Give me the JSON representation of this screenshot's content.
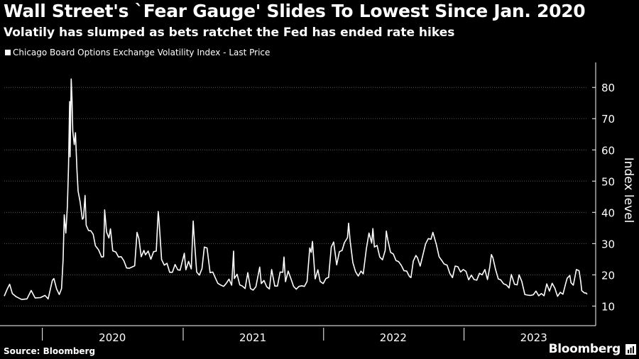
{
  "header": {
    "title": "Wall Street's `Fear Gauge' Slides To Lowest Since Jan. 2020",
    "subtitle": "Volatily has slumped as bets ratchet the Fed has ended rate hikes"
  },
  "footer": {
    "source": "Source: Bloomberg",
    "brand": "Bloomberg"
  },
  "colors": {
    "background": "#000000",
    "line": "#ffffff",
    "grid": "#555555"
  },
  "icons": {
    "brand_icon": "bar-chart-icon"
  },
  "chart_data": {
    "type": "line",
    "legend": "Chicago Board Options Exchange Volatility Index - Last Price",
    "ylabel": "Index level",
    "ylim": [
      6,
      88
    ],
    "yticks": [
      10,
      20,
      30,
      40,
      50,
      60,
      70,
      80
    ],
    "xlim": [
      "2019-09-24",
      "2023-11-17"
    ],
    "xticks": [
      {
        "label": "2020",
        "date": "2020-07-01"
      },
      {
        "label": "2021",
        "date": "2021-07-01"
      },
      {
        "label": "2022",
        "date": "2022-07-01"
      },
      {
        "label": "2023",
        "date": "2023-07-01"
      }
    ],
    "series": [
      {
        "name": "Chicago Board Options Exchange Volatility Index - Last Price",
        "points": [
          [
            "2019-09-24",
            13.2
          ],
          [
            "2019-10-02",
            15.5
          ],
          [
            "2019-10-08",
            17.0
          ],
          [
            "2019-10-15",
            14.0
          ],
          [
            "2019-10-25",
            13.0
          ],
          [
            "2019-11-08",
            12.1
          ],
          [
            "2019-11-22",
            12.3
          ],
          [
            "2019-12-03",
            15.0
          ],
          [
            "2019-12-13",
            12.6
          ],
          [
            "2019-12-27",
            12.7
          ],
          [
            "2020-01-08",
            13.4
          ],
          [
            "2020-01-16",
            12.3
          ],
          [
            "2020-01-27",
            18.2
          ],
          [
            "2020-01-31",
            18.8
          ],
          [
            "2020-02-07",
            15.5
          ],
          [
            "2020-02-14",
            13.7
          ],
          [
            "2020-02-20",
            15.6
          ],
          [
            "2020-02-24",
            25.0
          ],
          [
            "2020-02-27",
            39.2
          ],
          [
            "2020-03-02",
            33.4
          ],
          [
            "2020-03-06",
            41.9
          ],
          [
            "2020-03-09",
            54.5
          ],
          [
            "2020-03-12",
            75.5
          ],
          [
            "2020-03-13",
            57.8
          ],
          [
            "2020-03-16",
            82.7
          ],
          [
            "2020-03-18",
            76.5
          ],
          [
            "2020-03-20",
            66.0
          ],
          [
            "2020-03-24",
            61.7
          ],
          [
            "2020-03-27",
            65.5
          ],
          [
            "2020-03-31",
            53.5
          ],
          [
            "2020-04-03",
            46.8
          ],
          [
            "2020-04-08",
            43.4
          ],
          [
            "2020-04-14",
            37.8
          ],
          [
            "2020-04-17",
            38.2
          ],
          [
            "2020-04-21",
            45.4
          ],
          [
            "2020-04-24",
            35.9
          ],
          [
            "2020-04-30",
            34.2
          ],
          [
            "2020-05-06",
            34.1
          ],
          [
            "2020-05-12",
            33.0
          ],
          [
            "2020-05-18",
            29.3
          ],
          [
            "2020-05-26",
            28.0
          ],
          [
            "2020-06-03",
            25.7
          ],
          [
            "2020-06-08",
            25.8
          ],
          [
            "2020-06-11",
            40.8
          ],
          [
            "2020-06-16",
            33.7
          ],
          [
            "2020-06-22",
            31.8
          ],
          [
            "2020-06-26",
            34.7
          ],
          [
            "2020-07-02",
            27.7
          ],
          [
            "2020-07-10",
            27.3
          ],
          [
            "2020-07-17",
            25.7
          ],
          [
            "2020-07-24",
            25.8
          ],
          [
            "2020-07-31",
            24.5
          ],
          [
            "2020-08-07",
            22.2
          ],
          [
            "2020-08-14",
            22.1
          ],
          [
            "2020-08-21",
            22.5
          ],
          [
            "2020-08-28",
            22.9
          ],
          [
            "2020-09-03",
            33.6
          ],
          [
            "2020-09-08",
            31.5
          ],
          [
            "2020-09-14",
            25.8
          ],
          [
            "2020-09-21",
            27.8
          ],
          [
            "2020-09-25",
            26.4
          ],
          [
            "2020-10-02",
            27.6
          ],
          [
            "2020-10-09",
            25.0
          ],
          [
            "2020-10-16",
            27.4
          ],
          [
            "2020-10-23",
            27.6
          ],
          [
            "2020-10-28",
            40.3
          ],
          [
            "2020-10-30",
            38.0
          ],
          [
            "2020-11-06",
            24.9
          ],
          [
            "2020-11-13",
            23.1
          ],
          [
            "2020-11-20",
            23.7
          ],
          [
            "2020-11-27",
            20.8
          ],
          [
            "2020-12-04",
            20.8
          ],
          [
            "2020-12-11",
            23.3
          ],
          [
            "2020-12-18",
            21.6
          ],
          [
            "2020-12-24",
            21.5
          ],
          [
            "2021-01-04",
            26.9
          ],
          [
            "2021-01-08",
            21.6
          ],
          [
            "2021-01-15",
            24.3
          ],
          [
            "2021-01-22",
            21.9
          ],
          [
            "2021-01-27",
            37.2
          ],
          [
            "2021-01-29",
            33.1
          ],
          [
            "2021-02-05",
            20.9
          ],
          [
            "2021-02-12",
            19.9
          ],
          [
            "2021-02-19",
            22.0
          ],
          [
            "2021-02-25",
            28.9
          ],
          [
            "2021-03-04",
            28.6
          ],
          [
            "2021-03-12",
            20.7
          ],
          [
            "2021-03-19",
            20.9
          ],
          [
            "2021-03-26",
            18.9
          ],
          [
            "2021-04-01",
            17.3
          ],
          [
            "2021-04-09",
            16.7
          ],
          [
            "2021-04-16",
            16.3
          ],
          [
            "2021-04-23",
            17.3
          ],
          [
            "2021-04-30",
            18.6
          ],
          [
            "2021-05-07",
            16.7
          ],
          [
            "2021-05-12",
            27.6
          ],
          [
            "2021-05-14",
            18.8
          ],
          [
            "2021-05-21",
            20.2
          ],
          [
            "2021-05-28",
            16.8
          ],
          [
            "2021-06-04",
            16.4
          ],
          [
            "2021-06-11",
            15.6
          ],
          [
            "2021-06-18",
            20.7
          ],
          [
            "2021-06-25",
            15.6
          ],
          [
            "2021-07-02",
            15.1
          ],
          [
            "2021-07-09",
            16.2
          ],
          [
            "2021-07-19",
            22.5
          ],
          [
            "2021-07-23",
            17.2
          ],
          [
            "2021-07-30",
            18.2
          ],
          [
            "2021-08-06",
            16.2
          ],
          [
            "2021-08-13",
            15.5
          ],
          [
            "2021-08-19",
            21.7
          ],
          [
            "2021-08-27",
            16.4
          ],
          [
            "2021-09-03",
            16.4
          ],
          [
            "2021-09-10",
            20.9
          ],
          [
            "2021-09-17",
            20.8
          ],
          [
            "2021-09-20",
            25.7
          ],
          [
            "2021-09-24",
            17.8
          ],
          [
            "2021-10-01",
            21.2
          ],
          [
            "2021-10-08",
            18.8
          ],
          [
            "2021-10-15",
            16.3
          ],
          [
            "2021-10-22",
            15.4
          ],
          [
            "2021-10-29",
            16.3
          ],
          [
            "2021-11-05",
            16.5
          ],
          [
            "2021-11-12",
            16.3
          ],
          [
            "2021-11-19",
            17.9
          ],
          [
            "2021-11-26",
            28.6
          ],
          [
            "2021-11-30",
            27.2
          ],
          [
            "2021-12-03",
            30.7
          ],
          [
            "2021-12-10",
            18.7
          ],
          [
            "2021-12-17",
            21.6
          ],
          [
            "2021-12-23",
            17.9
          ],
          [
            "2021-12-31",
            17.2
          ],
          [
            "2022-01-07",
            18.8
          ],
          [
            "2022-01-14",
            19.2
          ],
          [
            "2022-01-21",
            28.9
          ],
          [
            "2022-01-27",
            30.5
          ],
          [
            "2022-02-04",
            23.2
          ],
          [
            "2022-02-11",
            27.4
          ],
          [
            "2022-02-18",
            27.8
          ],
          [
            "2022-02-24",
            30.3
          ],
          [
            "2022-03-04",
            31.9
          ],
          [
            "2022-03-07",
            36.5
          ],
          [
            "2022-03-11",
            30.8
          ],
          [
            "2022-03-18",
            23.9
          ],
          [
            "2022-03-25",
            21.0
          ],
          [
            "2022-04-01",
            19.6
          ],
          [
            "2022-04-08",
            21.2
          ],
          [
            "2022-04-14",
            20.3
          ],
          [
            "2022-04-22",
            28.2
          ],
          [
            "2022-04-29",
            33.4
          ],
          [
            "2022-05-06",
            30.2
          ],
          [
            "2022-05-09",
            34.8
          ],
          [
            "2022-05-13",
            28.9
          ],
          [
            "2022-05-20",
            29.4
          ],
          [
            "2022-05-27",
            25.7
          ],
          [
            "2022-06-03",
            24.8
          ],
          [
            "2022-06-10",
            27.8
          ],
          [
            "2022-06-13",
            34.0
          ],
          [
            "2022-06-17",
            31.1
          ],
          [
            "2022-06-24",
            27.2
          ],
          [
            "2022-07-01",
            26.7
          ],
          [
            "2022-07-08",
            24.6
          ],
          [
            "2022-07-15",
            24.2
          ],
          [
            "2022-07-22",
            23.0
          ],
          [
            "2022-07-29",
            21.3
          ],
          [
            "2022-08-05",
            21.2
          ],
          [
            "2022-08-12",
            19.5
          ],
          [
            "2022-08-16",
            19.1
          ],
          [
            "2022-08-22",
            24.4
          ],
          [
            "2022-08-29",
            26.2
          ],
          [
            "2022-09-02",
            25.5
          ],
          [
            "2022-09-09",
            22.8
          ],
          [
            "2022-09-16",
            26.3
          ],
          [
            "2022-09-23",
            29.9
          ],
          [
            "2022-09-30",
            31.6
          ],
          [
            "2022-10-07",
            31.4
          ],
          [
            "2022-10-12",
            33.6
          ],
          [
            "2022-10-21",
            29.7
          ],
          [
            "2022-10-28",
            25.8
          ],
          [
            "2022-11-04",
            24.6
          ],
          [
            "2022-11-10",
            23.5
          ],
          [
            "2022-11-18",
            23.1
          ],
          [
            "2022-11-25",
            20.5
          ],
          [
            "2022-12-02",
            19.1
          ],
          [
            "2022-12-09",
            22.8
          ],
          [
            "2022-12-16",
            22.6
          ],
          [
            "2022-12-23",
            20.9
          ],
          [
            "2022-12-30",
            21.7
          ],
          [
            "2023-01-06",
            21.1
          ],
          [
            "2023-01-13",
            18.4
          ],
          [
            "2023-01-20",
            19.9
          ],
          [
            "2023-01-27",
            18.5
          ],
          [
            "2023-02-03",
            18.3
          ],
          [
            "2023-02-10",
            20.5
          ],
          [
            "2023-02-17",
            20.0
          ],
          [
            "2023-02-24",
            21.7
          ],
          [
            "2023-03-03",
            18.5
          ],
          [
            "2023-03-09",
            22.6
          ],
          [
            "2023-03-13",
            26.5
          ],
          [
            "2023-03-17",
            25.5
          ],
          [
            "2023-03-24",
            21.7
          ],
          [
            "2023-03-31",
            18.7
          ],
          [
            "2023-04-06",
            18.4
          ],
          [
            "2023-04-14",
            17.1
          ],
          [
            "2023-04-21",
            16.8
          ],
          [
            "2023-04-28",
            15.8
          ],
          [
            "2023-05-04",
            20.1
          ],
          [
            "2023-05-12",
            17.0
          ],
          [
            "2023-05-19",
            16.8
          ],
          [
            "2023-05-24",
            20.0
          ],
          [
            "2023-05-31",
            17.9
          ],
          [
            "2023-06-08",
            13.7
          ],
          [
            "2023-06-16",
            13.5
          ],
          [
            "2023-06-23",
            13.4
          ],
          [
            "2023-06-30",
            13.6
          ],
          [
            "2023-07-07",
            14.8
          ],
          [
            "2023-07-14",
            13.3
          ],
          [
            "2023-07-21",
            14.0
          ],
          [
            "2023-07-28",
            13.3
          ],
          [
            "2023-08-04",
            17.1
          ],
          [
            "2023-08-11",
            14.8
          ],
          [
            "2023-08-18",
            17.3
          ],
          [
            "2023-08-25",
            15.7
          ],
          [
            "2023-09-01",
            13.1
          ],
          [
            "2023-09-08",
            14.4
          ],
          [
            "2023-09-15",
            13.8
          ],
          [
            "2023-09-22",
            17.2
          ],
          [
            "2023-09-26",
            18.9
          ],
          [
            "2023-10-03",
            19.8
          ],
          [
            "2023-10-06",
            17.5
          ],
          [
            "2023-10-12",
            16.7
          ],
          [
            "2023-10-20",
            21.7
          ],
          [
            "2023-10-27",
            21.3
          ],
          [
            "2023-10-31",
            18.1
          ],
          [
            "2023-11-03",
            14.9
          ],
          [
            "2023-11-10",
            14.2
          ],
          [
            "2023-11-14",
            14.2
          ],
          [
            "2023-11-17",
            13.8
          ]
        ]
      }
    ]
  }
}
